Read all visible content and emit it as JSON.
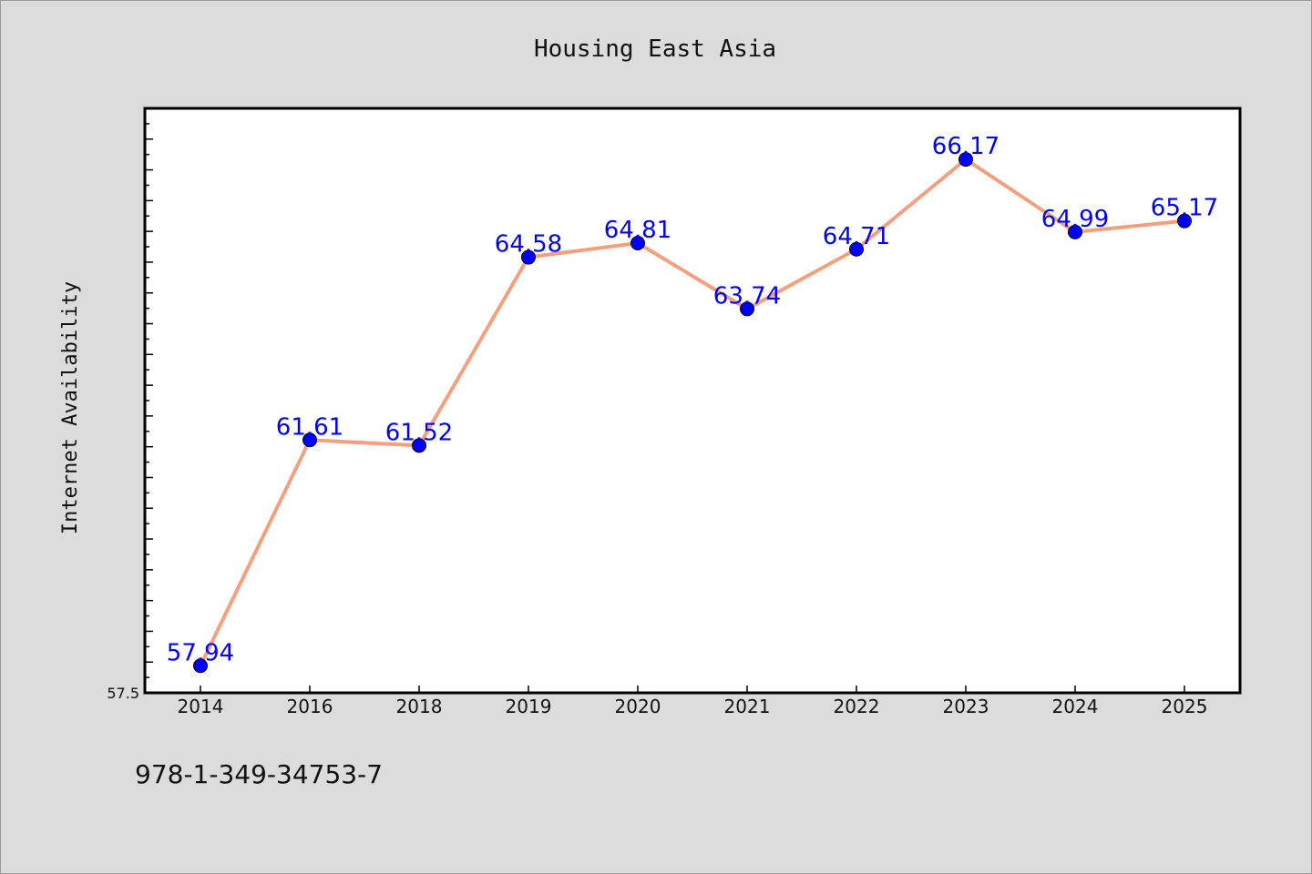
{
  "chart_data": {
    "type": "line",
    "title": "Housing East Asia",
    "xlabel": "",
    "ylabel": "Internet Availability",
    "categories": [
      "2014",
      "2016",
      "2018",
      "2019",
      "2020",
      "2021",
      "2022",
      "2023",
      "2024",
      "2025"
    ],
    "series": [
      {
        "values": [
          57.94,
          61.61,
          61.52,
          64.58,
          64.81,
          63.74,
          64.71,
          66.17,
          64.99,
          65.17
        ],
        "labels": [
          "57.94",
          "61.61",
          "61.52",
          "64.58",
          "64.81",
          "63.74",
          "64.71",
          "66.17",
          "64.99",
          "65.17"
        ]
      }
    ],
    "ylim": [
      57.5,
      67.0
    ],
    "yticks_labeled": [
      "57.5"
    ],
    "grid": false,
    "legend": "none",
    "line_color": "#f4a07e",
    "marker_color": "#0000ff",
    "label_color": "#0000ff"
  },
  "footnote": "978-1-349-34753-7"
}
